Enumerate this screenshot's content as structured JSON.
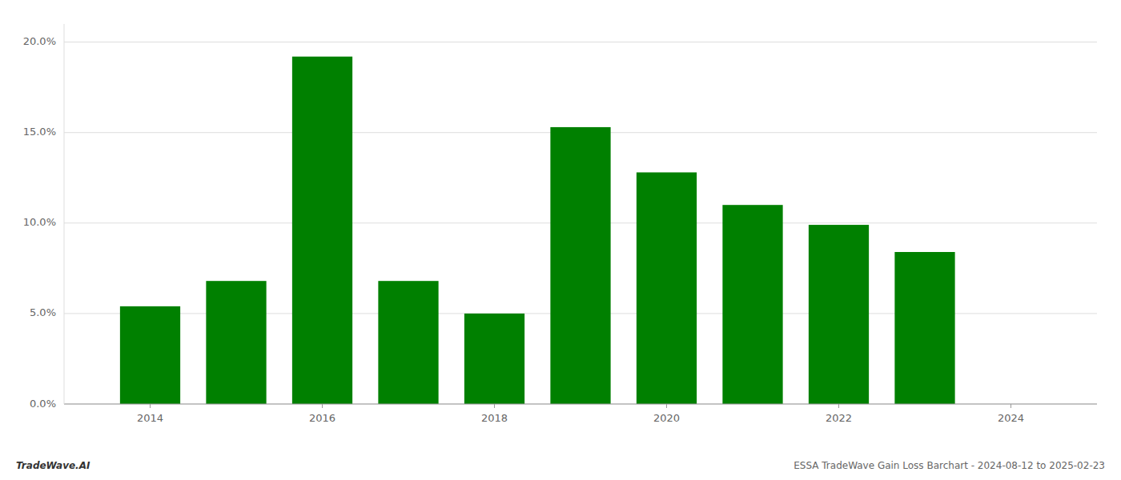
{
  "chart_data": {
    "type": "bar",
    "x": [
      2014,
      2015,
      2016,
      2017,
      2018,
      2019,
      2020,
      2021,
      2022,
      2023
    ],
    "values": [
      0.054,
      0.068,
      0.192,
      0.068,
      0.05,
      0.153,
      0.128,
      0.11,
      0.099,
      0.084
    ],
    "color": "#008000",
    "xlim": [
      2013.0,
      2025.0
    ],
    "xticks": [
      2014,
      2016,
      2018,
      2020,
      2022,
      2024
    ],
    "ylim": [
      0,
      0.21
    ],
    "yticks": [
      {
        "value": 0.0,
        "label": "0.0%"
      },
      {
        "value": 0.05,
        "label": "5.0%"
      },
      {
        "value": 0.1,
        "label": "10.0%"
      },
      {
        "value": 0.15,
        "label": "15.0%"
      },
      {
        "value": 0.2,
        "label": "20.0%"
      }
    ],
    "grid": true,
    "annotations": [
      "TradeWave.AI",
      "ESSA TradeWave Gain Loss Barchart - 2024-08-12 to 2025-02-23"
    ]
  }
}
